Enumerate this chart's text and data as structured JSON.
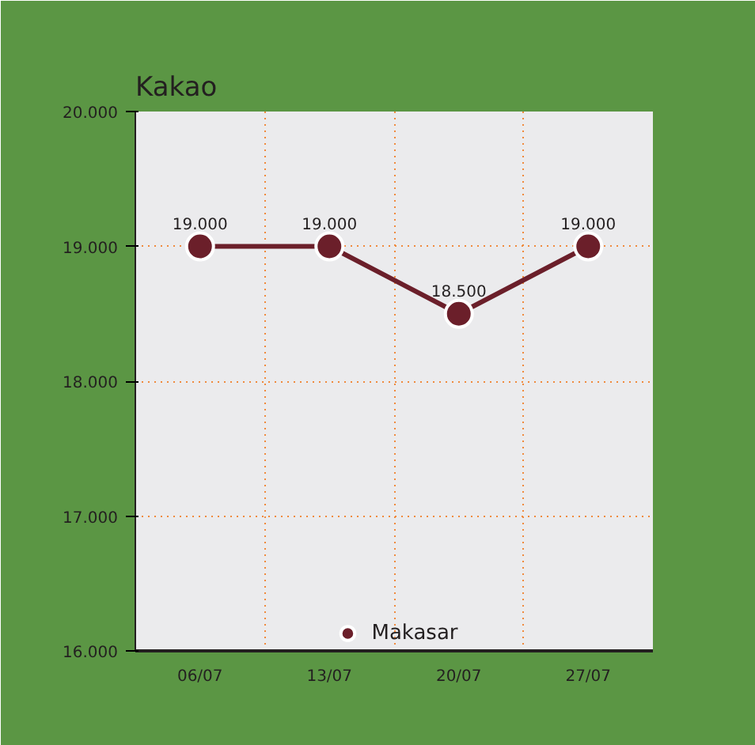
{
  "chart_data": {
    "type": "line",
    "title": "Kakao",
    "categories": [
      "06/07",
      "13/07",
      "20/07",
      "27/07"
    ],
    "series": [
      {
        "name": "Makasar",
        "color": "#6b1f2a",
        "values": [
          19000,
          19000,
          18500,
          19000
        ],
        "value_labels": [
          "19.000",
          "19.000",
          "18.500",
          "19.000"
        ]
      }
    ],
    "ylim": [
      16000,
      20000
    ],
    "yticks": [
      {
        "value": 16000,
        "label": "16.000"
      },
      {
        "value": 17000,
        "label": "17.000"
      },
      {
        "value": 18000,
        "label": "18.000"
      },
      {
        "value": 19000,
        "label": "19.000"
      },
      {
        "value": 20000,
        "label": "20.000"
      }
    ],
    "grid": true,
    "legend": "bottom",
    "marker": "circle",
    "line_style": "solid"
  }
}
